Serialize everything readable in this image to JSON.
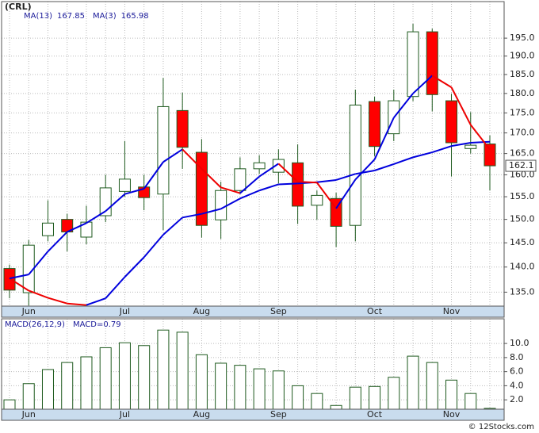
{
  "chart_data": [
    {
      "type": "candlestick",
      "title": "(CRL)",
      "categories": [
        null,
        "Jun",
        null,
        null,
        null,
        null,
        "Jul",
        null,
        null,
        null,
        "Aug",
        null,
        null,
        null,
        "Sep",
        null,
        null,
        null,
        null,
        "Oct",
        null,
        null,
        null,
        "Nov",
        null,
        null
      ],
      "open": [
        139.7,
        134.9,
        146.5,
        150.0,
        146.2,
        150.8,
        156.2,
        157.2,
        155.6,
        175.6,
        165.3,
        149.9,
        156.4,
        161.4,
        160.6,
        162.8,
        153.1,
        154.6,
        148.7,
        177.9,
        169.8,
        179.2,
        196.8,
        178.1,
        166.2,
        167.3
      ],
      "high": [
        140.5,
        145.6,
        154.2,
        151.2,
        153.0,
        160.0,
        168.0,
        160.0,
        184.1,
        180.2,
        168.5,
        158.4,
        164.1,
        164.6,
        166.0,
        167.2,
        156.4,
        155.9,
        181.0,
        179.2,
        181.0,
        199.1,
        197.7,
        179.9,
        175.2,
        169.4
      ],
      "low": [
        133.8,
        132.4,
        145.3,
        143.2,
        144.7,
        149.4,
        155.0,
        152.0,
        147.7,
        161.4,
        146.1,
        145.8,
        155.6,
        160.2,
        158.0,
        149.0,
        149.9,
        144.1,
        145.3,
        164.4,
        168.0,
        178.0,
        175.4,
        159.6,
        165.0,
        156.4
      ],
      "close": [
        135.4,
        144.5,
        149.2,
        147.3,
        149.4,
        157.0,
        159.0,
        154.8,
        176.6,
        166.5,
        148.7,
        156.4,
        161.4,
        162.8,
        163.6,
        152.9,
        155.3,
        148.5,
        177.0,
        166.7,
        178.1,
        196.8,
        179.7,
        167.6,
        167.0,
        162.1
      ],
      "up_color": "#ffffff",
      "down_color": "#ff0000",
      "edge_color": "#1e5a1e",
      "lines": [
        {
          "name": "MA(13)",
          "up_color": "#0000dd",
          "down_color": "#ee0000",
          "values": [
            137.7,
            135.3,
            133.9,
            132.8,
            132.5,
            133.8,
            138.0,
            142.0,
            146.7,
            150.4,
            151.2,
            152.3,
            154.6,
            156.4,
            157.8,
            158.0,
            158.3,
            158.8,
            160.2,
            161.0,
            162.5,
            164.1,
            165.3,
            166.8,
            167.6,
            167.85
          ]
        },
        {
          "name": "MA(3)",
          "up_color": "#0000dd",
          "down_color": "#ee0000",
          "values": [
            137.7,
            138.5,
            143.2,
            147.3,
            149.2,
            151.8,
            155.6,
            156.8,
            163.0,
            166.0,
            161.4,
            157.1,
            155.8,
            159.6,
            162.6,
            158.4,
            158.2,
            152.4,
            158.9,
            163.6,
            173.8,
            180.0,
            184.7,
            181.6,
            172.0,
            165.98
          ]
        }
      ],
      "ylim": [
        132.3,
        205.6
      ],
      "log_scale": true,
      "grid": true,
      "yticks": [
        {
          "value": 135,
          "label": "135.0"
        },
        {
          "value": 140,
          "label": "140.0"
        },
        {
          "value": 145,
          "label": "145.0"
        },
        {
          "value": 150,
          "label": "150.0"
        },
        {
          "value": 155,
          "label": "155.0"
        },
        {
          "value": 160,
          "label": "160.0"
        },
        {
          "value": 165,
          "label": "165.0"
        },
        {
          "value": 170,
          "label": "170.0"
        },
        {
          "value": 175,
          "label": "175.0"
        },
        {
          "value": 180,
          "label": "180.0"
        },
        {
          "value": 185,
          "label": "185.0"
        },
        {
          "value": 190,
          "label": "190.0"
        },
        {
          "value": 195,
          "label": "195.0"
        }
      ]
    },
    {
      "type": "bar",
      "title": "MACD(26,12,9)",
      "value_name": "MACD",
      "color": "#ffffff",
      "edge_color": "#1e5a1e",
      "values": [
        2.0,
        4.3,
        6.3,
        7.3,
        8.1,
        9.4,
        10.1,
        9.7,
        11.9,
        11.6,
        8.4,
        7.2,
        6.9,
        6.4,
        6.1,
        4.0,
        2.9,
        1.2,
        3.8,
        3.9,
        5.2,
        8.2,
        7.3,
        4.8,
        2.9,
        0.79
      ],
      "ylim": [
        0.67,
        13.5
      ],
      "grid": true,
      "yticks": [
        {
          "value": 2,
          "label": "2.0"
        },
        {
          "value": 4,
          "label": "4.0"
        },
        {
          "value": 6,
          "label": "6.0"
        },
        {
          "value": 8,
          "label": "8.0"
        },
        {
          "value": 10,
          "label": "10.0"
        }
      ]
    }
  ],
  "footer": "© 12Stocks.com"
}
